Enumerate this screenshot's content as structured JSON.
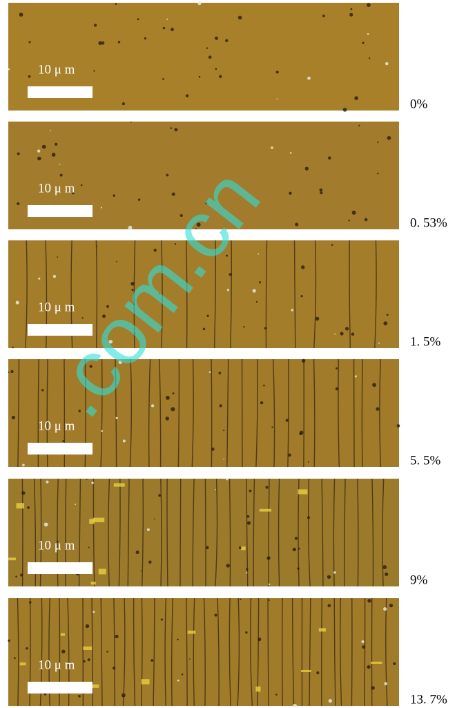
{
  "panels": [
    {
      "scale_label": "10 μ m",
      "strain": "0%"
    },
    {
      "scale_label": "10 μ m",
      "strain": "0. 53%"
    },
    {
      "scale_label": "10 μ m",
      "strain": "1. 5%"
    },
    {
      "scale_label": "10 μ m",
      "strain": "5. 5%"
    },
    {
      "scale_label": "10 μ m",
      "strain": "9%"
    },
    {
      "scale_label": "10 μ m",
      "strain": "13. 7%"
    }
  ],
  "watermark": ".com.cn"
}
